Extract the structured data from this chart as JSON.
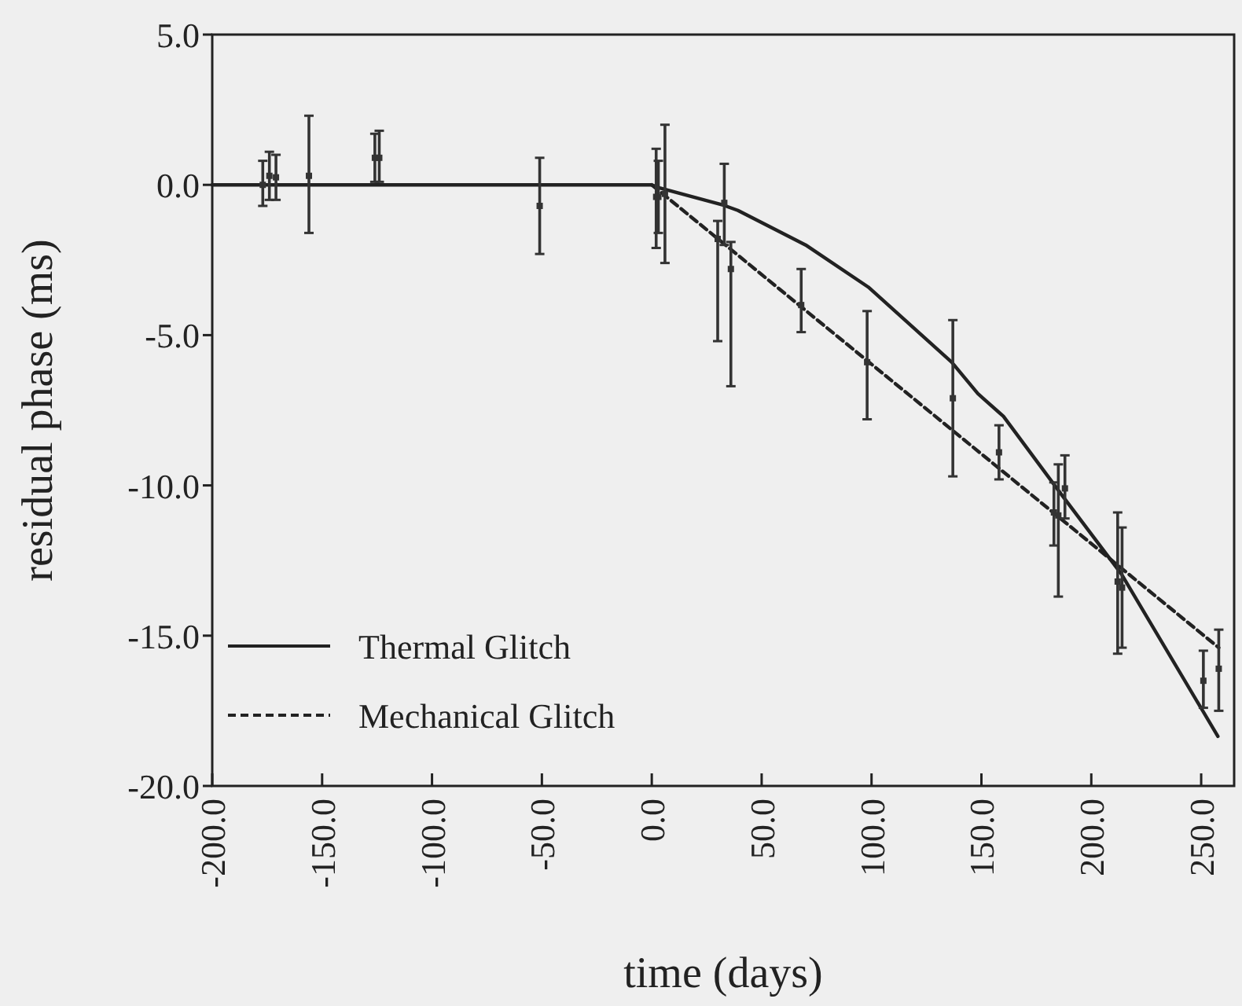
{
  "chart_data": {
    "type": "line",
    "xlabel": "time (days)",
    "ylabel": "residual phase (ms)",
    "xlim": [
      -200,
      265
    ],
    "ylim": [
      -20,
      5
    ],
    "xticks": [
      {
        "value": -200,
        "label": "-200.0"
      },
      {
        "value": -150,
        "label": "-150.0"
      },
      {
        "value": -100,
        "label": "-100.0"
      },
      {
        "value": -50,
        "label": "-50.0"
      },
      {
        "value": 0,
        "label": "0.0"
      },
      {
        "value": 50,
        "label": "50.0"
      },
      {
        "value": 100,
        "label": "100.0"
      },
      {
        "value": 150,
        "label": "150.0"
      },
      {
        "value": 200,
        "label": "200.0"
      },
      {
        "value": 250,
        "label": "250.0"
      }
    ],
    "yticks": [
      {
        "value": 5,
        "label": "5.0"
      },
      {
        "value": 0,
        "label": "0.0"
      },
      {
        "value": -5,
        "label": "-5.0"
      },
      {
        "value": -10,
        "label": "-10.0"
      },
      {
        "value": -15,
        "label": "-15.0"
      },
      {
        "value": -20,
        "label": "-20.0"
      }
    ],
    "legend": "bottom left",
    "grid": false,
    "series": [
      {
        "name": "Thermal Glitch",
        "color": "#222222",
        "line_style": "solid",
        "x": [
          -200,
          0,
          3.6,
          32.8,
          39.2,
          70,
          98.5,
          136.5,
          148.4,
          160,
          186.4,
          213.7,
          257.6
        ],
        "values": [
          0,
          0,
          -0.1,
          -0.68,
          -0.85,
          -2.0,
          -3.4,
          -5.9,
          -6.95,
          -7.7,
          -10.3,
          -12.95,
          -18.35
        ]
      },
      {
        "name": "Mechanical Glitch",
        "color": "#222222",
        "line_style": "dashed",
        "x": [
          0,
          258
        ],
        "values": [
          0,
          -15.4
        ]
      },
      {
        "type": "scatter",
        "color": "#333333",
        "marker": "square",
        "x": [
          -177,
          -174,
          -171,
          -156,
          -126,
          -124,
          -51,
          2,
          3,
          6,
          30,
          33,
          36,
          68,
          98,
          137,
          158,
          183,
          185,
          188,
          212,
          214,
          251,
          258
        ],
        "values": [
          0,
          0.3,
          0.25,
          0.3,
          0.9,
          0.9,
          -0.7,
          -0.4,
          -0.4,
          -0.3,
          -1.8,
          -0.6,
          -2.8,
          -4.0,
          -5.9,
          -7.1,
          -8.9,
          -10.9,
          -11.0,
          -10.1,
          -13.2,
          -13.4,
          -16.5,
          -16.1
        ],
        "errors": [
          [
            -0.7,
            0.8
          ],
          [
            -0.5,
            1.1
          ],
          [
            -0.5,
            1.0
          ],
          [
            -1.6,
            2.3
          ],
          [
            0.1,
            1.7
          ],
          [
            0.1,
            1.8
          ],
          [
            -2.3,
            0.9
          ],
          [
            -2.1,
            1.2
          ],
          [
            -1.6,
            0.8
          ],
          [
            -2.6,
            2.0
          ],
          [
            -5.2,
            -1.2
          ],
          [
            -2.0,
            0.7
          ],
          [
            -6.7,
            -1.9
          ],
          [
            -4.9,
            -2.8
          ],
          [
            -7.8,
            -4.2
          ],
          [
            -9.7,
            -4.5
          ],
          [
            -9.8,
            -8.0
          ],
          [
            -12.0,
            -9.9
          ],
          [
            -13.7,
            -9.3
          ],
          [
            -11.1,
            -9.0
          ],
          [
            -15.6,
            -10.9
          ],
          [
            -15.4,
            -11.4
          ],
          [
            -17.4,
            -15.5
          ],
          [
            -17.5,
            -14.8
          ]
        ]
      }
    ]
  }
}
